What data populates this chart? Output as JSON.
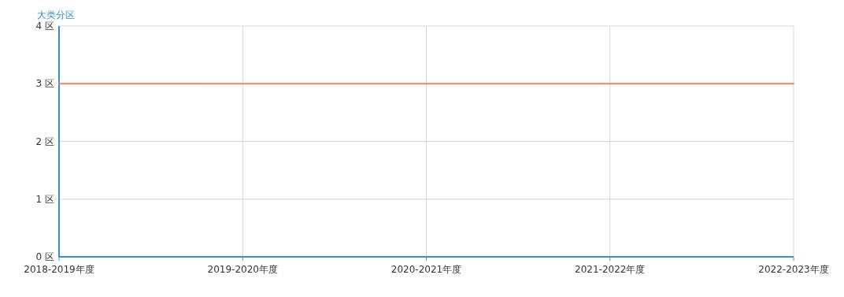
{
  "chart_data": {
    "type": "line",
    "ylabel": "大类分区",
    "categories": [
      "2018-2019年度",
      "2019-2020年度",
      "2020-2021年度",
      "2021-2022年度",
      "2022-2023年度"
    ],
    "series": [
      {
        "color": "#f5845c",
        "values": [
          3,
          3,
          3,
          3,
          3
        ]
      }
    ],
    "ylim": [
      0,
      4
    ],
    "yticks": [
      {
        "value": 0,
        "label": "0 区"
      },
      {
        "value": 1,
        "label": "1 区"
      },
      {
        "value": 2,
        "label": "2 区"
      },
      {
        "value": 3,
        "label": "3 区"
      },
      {
        "value": 4,
        "label": "4 区"
      }
    ],
    "grid": true,
    "marker": "none",
    "line_style": "solid"
  }
}
